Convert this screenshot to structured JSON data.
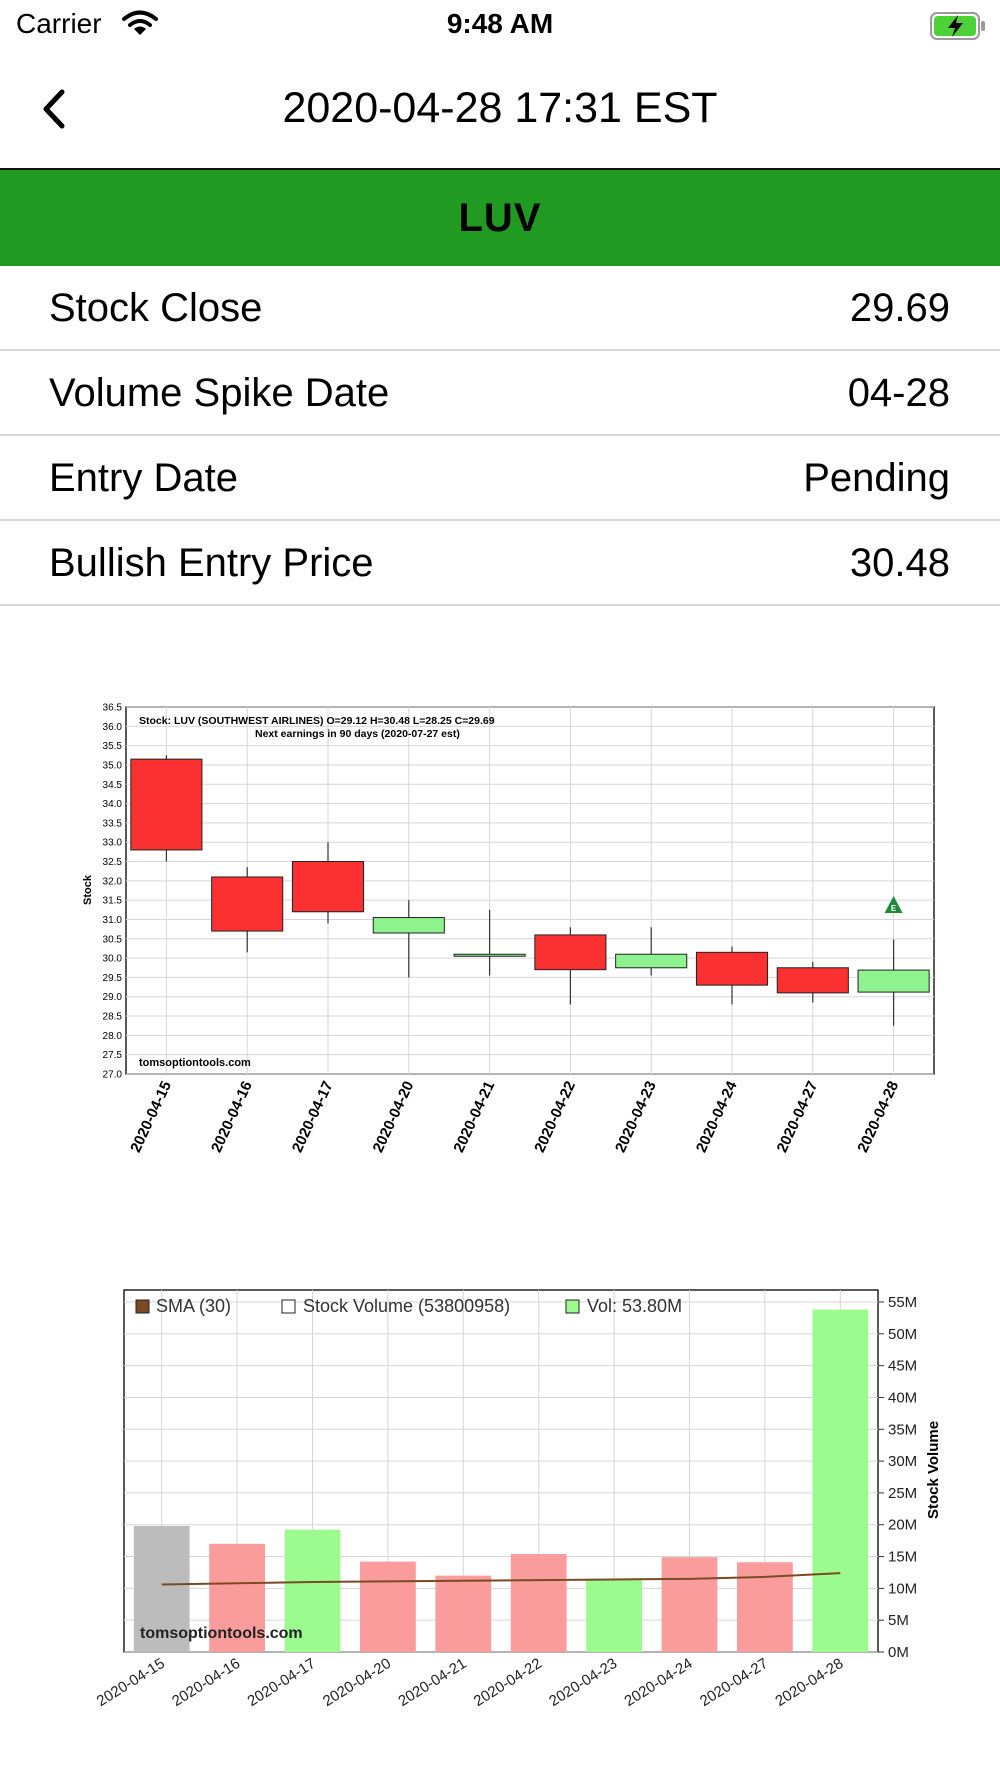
{
  "status_bar": {
    "carrier": "Carrier",
    "time": "9:48 AM"
  },
  "nav": {
    "title": "2020-04-28 17:31 EST",
    "back_icon": "chevron-left-icon"
  },
  "banner": {
    "ticker": "LUV",
    "color": "#209a20"
  },
  "rows": [
    {
      "label": "Stock Close",
      "value": "29.69"
    },
    {
      "label": "Volume Spike Date",
      "value": "04-28"
    },
    {
      "label": "Entry Date",
      "value": "Pending"
    },
    {
      "label": "Bullish Entry Price",
      "value": "30.48"
    }
  ],
  "chart_data": [
    {
      "type": "candlestick",
      "header_line1": "Stock: LUV (SOUTHWEST AIRLINES) O=29.12  H=30.48  L=28.25  C=29.69",
      "header_line2": "Next earnings in 90 days  (2020-07-27 est)",
      "watermark": "tomsoptiontools.com",
      "ylabel": "Stock",
      "ylim": [
        27.0,
        36.5
      ],
      "yticks": [
        "36.5",
        "36.0",
        "35.5",
        "35.0",
        "34.5",
        "34.0",
        "33.5",
        "33.0",
        "32.5",
        "32.0",
        "31.5",
        "31.0",
        "30.5",
        "30.0",
        "29.5",
        "29.0",
        "28.5",
        "28.0",
        "27.5",
        "27.0"
      ],
      "categories": [
        "2020-04-15",
        "2020-04-16",
        "2020-04-17",
        "2020-04-20",
        "2020-04-21",
        "2020-04-22",
        "2020-04-23",
        "2020-04-24",
        "2020-04-27",
        "2020-04-28"
      ],
      "candles": [
        {
          "open": 35.15,
          "high": 35.25,
          "low": 32.5,
          "close": 32.8
        },
        {
          "open": 32.1,
          "high": 32.35,
          "low": 30.15,
          "close": 30.7
        },
        {
          "open": 32.5,
          "high": 33.0,
          "low": 30.9,
          "close": 31.2
        },
        {
          "open": 30.65,
          "high": 31.5,
          "low": 29.5,
          "close": 31.05
        },
        {
          "open": 30.05,
          "high": 31.25,
          "low": 29.55,
          "close": 30.1
        },
        {
          "open": 30.6,
          "high": 30.8,
          "low": 28.8,
          "close": 29.7
        },
        {
          "open": 29.75,
          "high": 30.8,
          "low": 29.55,
          "close": 30.1
        },
        {
          "open": 30.15,
          "high": 30.3,
          "low": 28.8,
          "close": 29.3
        },
        {
          "open": 29.75,
          "high": 29.9,
          "low": 28.85,
          "close": 29.1
        },
        {
          "open": 29.12,
          "high": 30.48,
          "low": 28.25,
          "close": 29.69
        }
      ],
      "earnings_marker": {
        "category": "2020-04-28",
        "value": 31.35,
        "label": "E"
      },
      "colors": {
        "up": "#8ef28e",
        "down": "#fb3030"
      }
    },
    {
      "type": "bar",
      "legend": [
        "SMA (30)",
        "Stock Volume (53800958)",
        "Vol: 53.80M"
      ],
      "watermark": "tomsoptiontools.com",
      "ylabel": "Stock Volume",
      "ylim": [
        0,
        55
      ],
      "yticks": [
        "55M",
        "50M",
        "45M",
        "40M",
        "35M",
        "30M",
        "25M",
        "20M",
        "15M",
        "10M",
        "5M",
        "0M"
      ],
      "categories": [
        "2020-04-15",
        "2020-04-16",
        "2020-04-17",
        "2020-04-20",
        "2020-04-21",
        "2020-04-22",
        "2020-04-23",
        "2020-04-24",
        "2020-04-27",
        "2020-04-28"
      ],
      "values": [
        19.8,
        17.0,
        19.2,
        14.2,
        12.0,
        15.4,
        11.5,
        14.9,
        14.1,
        53.8
      ],
      "bar_colors": [
        "#bcbcbc",
        "#fb9c9c",
        "#9bfb8f",
        "#fb9c9c",
        "#fb9c9c",
        "#fb9c9c",
        "#9bfb8f",
        "#fb9c9c",
        "#fb9c9c",
        "#9bfb8f"
      ],
      "sma": [
        10.6,
        10.8,
        11.0,
        11.1,
        11.2,
        11.3,
        11.4,
        11.5,
        11.8,
        12.4
      ],
      "colors": {
        "sma": "#7a4b22"
      }
    }
  ]
}
